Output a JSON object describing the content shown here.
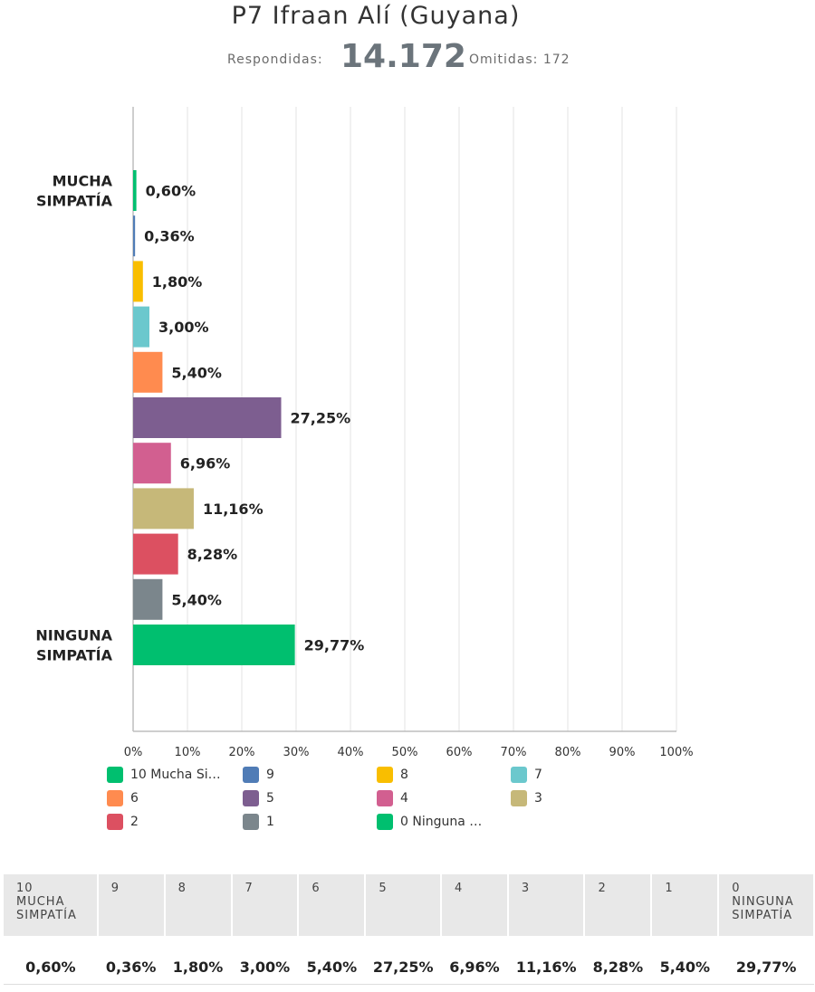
{
  "title": "P7 Ifraan Alí (Guyana)",
  "summary": {
    "answered_label": "Respondidas:",
    "answered_value": "14.172",
    "skipped_label": "Omitidas: 172"
  },
  "chart_data": {
    "type": "bar",
    "orientation": "horizontal",
    "categories": [
      "10 Mucha Simpatía",
      "9",
      "8",
      "7",
      "6",
      "5",
      "4",
      "3",
      "2",
      "1",
      "0 Ninguna Simpatía"
    ],
    "values": [
      0.6,
      0.36,
      1.8,
      3.0,
      5.4,
      27.25,
      6.96,
      11.16,
      8.28,
      5.4,
      29.77
    ],
    "value_labels": [
      "0,60%",
      "0,36%",
      "1,80%",
      "3,00%",
      "5,40%",
      "27,25%",
      "6,96%",
      "11,16%",
      "8,28%",
      "5,40%",
      "29,77%"
    ],
    "colors": [
      "#00bf6f",
      "#507cb6",
      "#f9be00",
      "#6bc8cd",
      "#ff8b4f",
      "#7d5e90",
      "#d25f90",
      "#c6b879",
      "#dc5061",
      "#7b868c",
      "#00bf6f"
    ],
    "y_tick_labels": [
      {
        "index": 0,
        "text": [
          "MUCHA",
          "SIMPATÍA"
        ]
      },
      {
        "index": 10,
        "text": [
          "NINGUNA",
          "SIMPATÍA"
        ]
      }
    ],
    "x_ticks": [
      "0%",
      "10%",
      "20%",
      "30%",
      "40%",
      "50%",
      "60%",
      "70%",
      "80%",
      "90%",
      "100%"
    ],
    "xlim": [
      0,
      100
    ],
    "grid": true,
    "legend": {
      "position": "bottom",
      "entries": [
        "10 Mucha Si…",
        "9",
        "8",
        "7",
        "6",
        "5",
        "4",
        "3",
        "2",
        "1",
        "0 Ninguna …"
      ]
    }
  },
  "table": {
    "headers": [
      [
        "10",
        "MUCHA",
        "SIMPATÍA"
      ],
      [
        "9"
      ],
      [
        "8"
      ],
      [
        "7"
      ],
      [
        "6"
      ],
      [
        "5"
      ],
      [
        "4"
      ],
      [
        "3"
      ],
      [
        "2"
      ],
      [
        "1"
      ],
      [
        "0",
        "NINGUNA",
        "SIMPATÍA"
      ]
    ],
    "values": [
      "0,60%",
      "0,36%",
      "1,80%",
      "3,00%",
      "5,40%",
      "27,25%",
      "6,96%",
      "11,16%",
      "8,28%",
      "5,40%",
      "29,77%"
    ]
  }
}
